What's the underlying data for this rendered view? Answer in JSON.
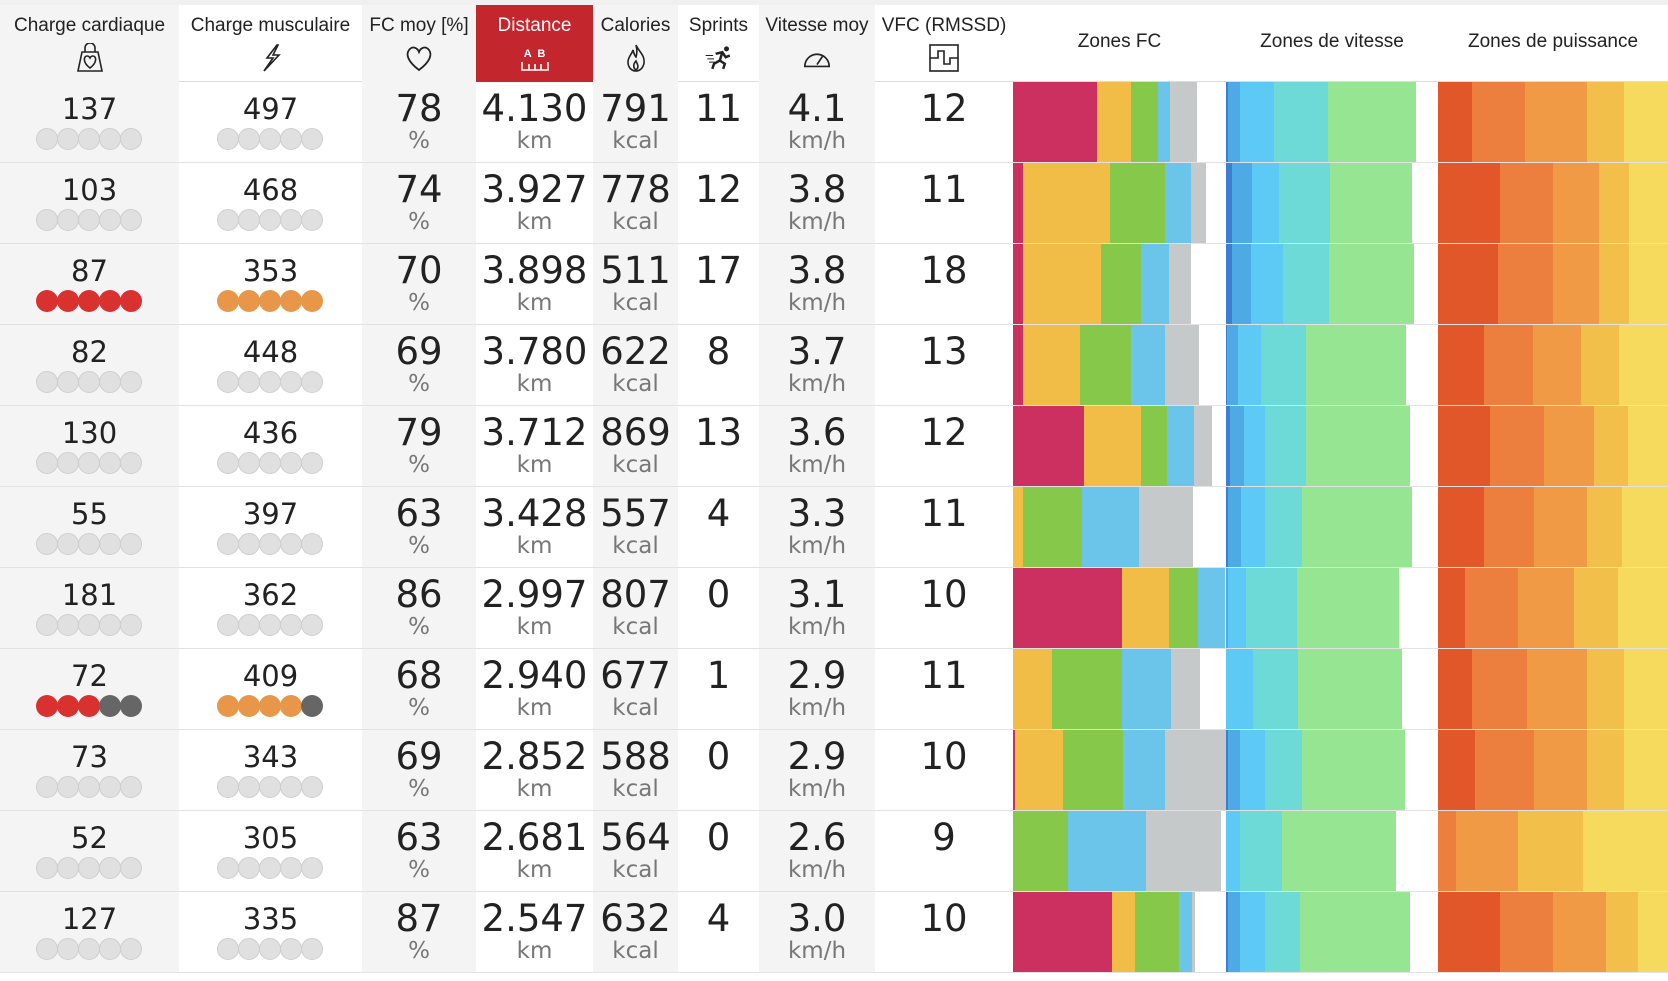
{
  "header": {
    "columns": [
      "Charge cardiaque",
      "Charge musculaire",
      "FC moy [%]",
      "Distance",
      "Calories",
      "Sprints",
      "Vitesse moy",
      "VFC (RMSSD)",
      "Zones FC",
      "Zones de vitesse",
      "Zones de puissance"
    ],
    "active_column": "Distance",
    "distance_icon_text": "A  B"
  },
  "units": {
    "pct": "%",
    "km": "km",
    "kcal": "kcal",
    "speed": "km/h"
  },
  "colors": {
    "active_header": "#c4262e",
    "dot_red": "#d93030",
    "dot_orange": "#e8974a",
    "dot_dark": "#666666",
    "hr_zones": [
      "#cc3061",
      "#f1bd47",
      "#86c94a",
      "#6bc5ea",
      "#c6c9c9"
    ],
    "speed_zones": [
      "#3b7fd4",
      "#4eaae4",
      "#5ccaf4",
      "#6ddad8",
      "#95e593"
    ],
    "power_zones": [
      "#e2572a",
      "#ec7f3d",
      "#f09a45",
      "#f2bf4b",
      "#f5da5e"
    ]
  },
  "rows": [
    {
      "hr_load": "137",
      "hr_dots": 0,
      "muscle_load": "497",
      "muscle_dots": 0,
      "hr_avg": "78",
      "distance": "4.130",
      "calories": "791",
      "sprints": "11",
      "speed": "4.1",
      "hrv": "12",
      "hr_zones": [
        39.4,
        15.9,
        13,
        5.5,
        12.8
      ],
      "speed_zones": [
        1,
        5.5,
        16.2,
        25.6,
        41.2
      ],
      "power_zones": [
        14.8,
        23.1,
        26.9,
        16.1,
        19.1
      ]
    },
    {
      "hr_load": "103",
      "hr_dots": 0,
      "muscle_load": "468",
      "muscle_dots": 0,
      "hr_avg": "74",
      "distance": "3.927",
      "calories": "778",
      "sprints": "12",
      "speed": "3.8",
      "hrv": "11",
      "hr_zones": [
        4.5,
        40.9,
        26,
        12.2,
        7.1
      ],
      "speed_zones": [
        3,
        9.3,
        12.8,
        24.1,
        38.7
      ],
      "power_zones": [
        26.9,
        23,
        20.2,
        13,
        17
      ]
    },
    {
      "hr_load": "87",
      "hr_dots": 5,
      "muscle_load": "353",
      "muscle_dots": 5,
      "hr_avg": "70",
      "distance": "3.898",
      "calories": "511",
      "sprints": "17",
      "speed": "3.8",
      "hrv": "18",
      "hr_zones": [
        4.5,
        36.6,
        18.9,
        13.2,
        10.4
      ],
      "speed_zones": [
        2.8,
        9.1,
        15.2,
        21.3,
        40.2
      ],
      "power_zones": [
        25.9,
        23.9,
        20.2,
        13,
        17
      ]
    },
    {
      "hr_load": "82",
      "hr_dots": 0,
      "muscle_load": "448",
      "muscle_dots": 0,
      "hr_avg": "69",
      "distance": "3.780",
      "calories": "622",
      "sprints": "8",
      "speed": "3.7",
      "hrv": "13",
      "hr_zones": [
        4.5,
        26.8,
        24,
        15.9,
        16.3
      ],
      "speed_zones": [
        0.6,
        4.9,
        10.8,
        21.5,
        47.1
      ],
      "power_zones": [
        19.8,
        21.3,
        21.1,
        16.7,
        21.1
      ]
    },
    {
      "hr_load": "130",
      "hr_dots": 0,
      "muscle_load": "436",
      "muscle_dots": 0,
      "hr_avg": "79",
      "distance": "3.712",
      "calories": "869",
      "sprints": "13",
      "speed": "3.6",
      "hrv": "12",
      "hr_zones": [
        33.3,
        26.8,
        12.2,
        12.6,
        8.7
      ],
      "speed_zones": [
        1.8,
        6.5,
        9.9,
        19.7,
        48.9
      ],
      "power_zones": [
        22.8,
        23.1,
        22,
        14.8,
        17.3
      ]
    },
    {
      "hr_load": "55",
      "hr_dots": 0,
      "muscle_load": "397",
      "muscle_dots": 0,
      "hr_avg": "63",
      "distance": "3.428",
      "calories": "557",
      "sprints": "4",
      "speed": "3.3",
      "hrv": "11",
      "hr_zones": [
        0,
        4.5,
        28,
        26.6,
        25.6
      ],
      "speed_zones": [
        1,
        6.1,
        11.2,
        17.6,
        51.9
      ],
      "power_zones": [
        19.8,
        22,
        23,
        15,
        20.2
      ]
    },
    {
      "hr_load": "181",
      "hr_dots": 0,
      "muscle_load": "362",
      "muscle_dots": 0,
      "hr_avg": "86",
      "distance": "2.997",
      "calories": "807",
      "sprints": "0",
      "speed": "3.1",
      "hrv": "10",
      "hr_zones": [
        51.2,
        22.2,
        13.4,
        12.6,
        0
      ],
      "speed_zones": [
        0,
        1,
        8.3,
        24.3,
        48.1
      ],
      "power_zones": [
        11.9,
        23,
        24.3,
        19,
        21.8
      ]
    },
    {
      "hr_load": "72",
      "hr_dots": 3,
      "muscle_load": "409",
      "muscle_dots": 4,
      "hr_avg": "68",
      "distance": "2.940",
      "calories": "677",
      "sprints": "1",
      "speed": "2.9",
      "hrv": "11",
      "hr_zones": [
        0,
        18.3,
        32.9,
        22.8,
        14
      ],
      "speed_zones": [
        0,
        0,
        12.8,
        21.3,
        48.7
      ],
      "power_zones": [
        14.8,
        24.1,
        25.9,
        16.1,
        19.1
      ]
    },
    {
      "hr_load": "73",
      "hr_dots": 0,
      "muscle_load": "343",
      "muscle_dots": 0,
      "hr_avg": "69",
      "distance": "2.852",
      "calories": "588",
      "sprints": "0",
      "speed": "2.9",
      "hrv": "10",
      "hr_zones": [
        1,
        22.4,
        28.3,
        19.5,
        28.7
      ],
      "speed_zones": [
        1,
        5.5,
        11.8,
        17.6,
        48.7
      ],
      "power_zones": [
        15.9,
        25.9,
        23,
        16.1,
        19.1
      ]
    },
    {
      "hr_load": "52",
      "hr_dots": 0,
      "muscle_load": "305",
      "muscle_dots": 0,
      "hr_avg": "63",
      "distance": "2.681",
      "calories": "564",
      "sprints": "0",
      "speed": "2.6",
      "hrv": "9",
      "hr_zones": [
        0,
        0,
        26,
        36.4,
        35.4
      ],
      "speed_zones": [
        0,
        0,
        6.5,
        19.7,
        54
      ],
      "power_zones": [
        0,
        8,
        26.9,
        28.1,
        37
      ]
    },
    {
      "hr_load": "127",
      "hr_dots": 0,
      "muscle_load": "335",
      "muscle_dots": 0,
      "hr_avg": "87",
      "distance": "2.547",
      "calories": "632",
      "sprints": "4",
      "speed": "3.0",
      "hrv": "10",
      "hr_zones": [
        46.5,
        10.6,
        20.7,
        6.3,
        1.6
      ],
      "speed_zones": [
        1,
        5.5,
        11.8,
        16.8,
        51.5
      ],
      "power_zones": [
        26.9,
        23,
        23.3,
        13.7,
        13.1
      ]
    }
  ]
}
